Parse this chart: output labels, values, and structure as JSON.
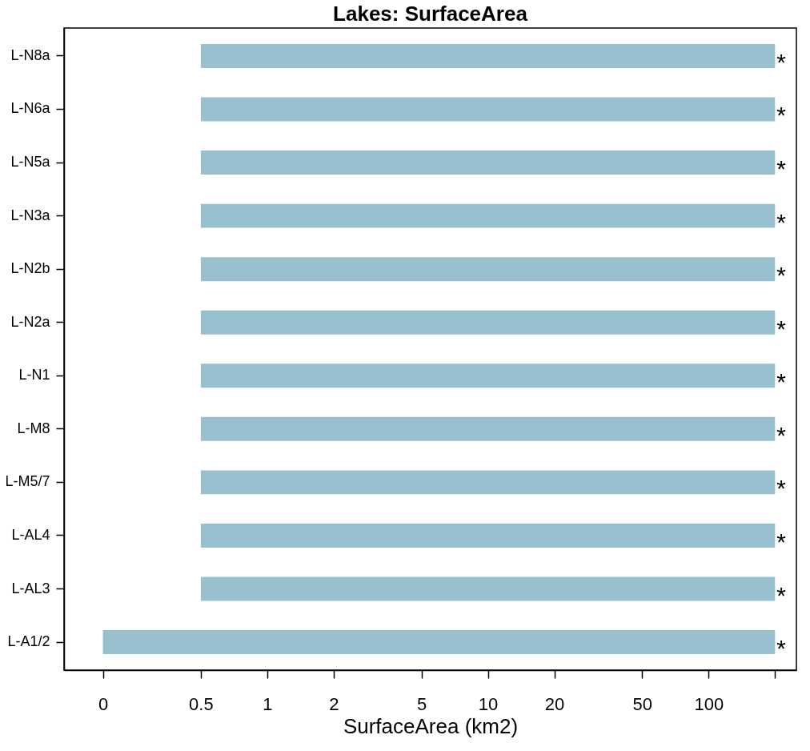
{
  "chart_data": {
    "type": "bar",
    "orientation": "horizontal",
    "title": "Lakes: SurfaceArea",
    "xlabel": "SurfaceArea (km2)",
    "categories": [
      "L-N8a",
      "L-N6a",
      "L-N5a",
      "L-N3a",
      "L-N2b",
      "L-N2a",
      "L-N1",
      "L-M8",
      "L-M5/7",
      "L-AL4",
      "L-AL3",
      "L-A1/2"
    ],
    "base": [
      0.5,
      0.5,
      0.5,
      0.5,
      0.5,
      0.5,
      0.5,
      0.5,
      0.5,
      0.5,
      0.5,
      0.18
    ],
    "values": [
      199.5,
      199.5,
      199.5,
      199.5,
      199.5,
      199.5,
      199.5,
      199.5,
      199.5,
      199.5,
      199.5,
      199.82
    ],
    "color": "#99c0ce",
    "log": "x",
    "xlim": [
      0.12,
      250
    ],
    "xticks": [
      {
        "value": 0.18,
        "label": "0"
      },
      0.5,
      1,
      2,
      5,
      10,
      20,
      50,
      100,
      {
        "value": 200,
        "label": null
      }
    ],
    "grid": false,
    "annotations": [
      "*",
      "*",
      "*",
      "*",
      "*",
      "*",
      "*",
      "*",
      "*",
      "*",
      "*",
      "*"
    ]
  }
}
